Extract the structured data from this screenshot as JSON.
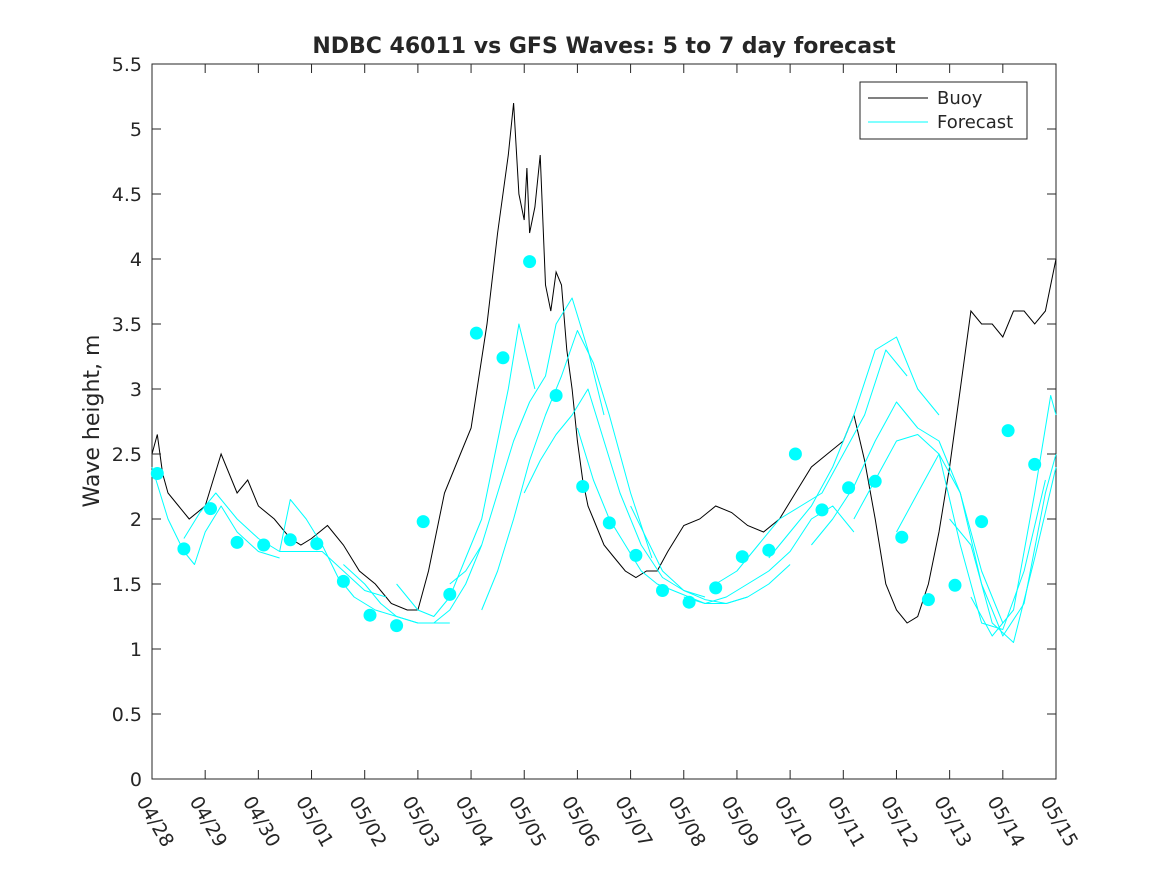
{
  "chart_data": {
    "type": "line",
    "title": "NDBC 46011 vs GFS Waves: 5 to 7 day forecast",
    "xlabel": "",
    "ylabel": "Wave height, m",
    "xlim": [
      0,
      17
    ],
    "ylim": [
      0,
      5.5
    ],
    "xticks": [
      0,
      1,
      2,
      3,
      4,
      5,
      6,
      7,
      8,
      9,
      10,
      11,
      12,
      13,
      14,
      15,
      16,
      17
    ],
    "xtick_labels": [
      "04/28",
      "04/29",
      "04/30",
      "05/01",
      "05/02",
      "05/03",
      "05/04",
      "05/05",
      "05/06",
      "05/07",
      "05/08",
      "05/09",
      "05/10",
      "05/11",
      "05/12",
      "05/13",
      "05/14",
      "05/15"
    ],
    "yticks": [
      0,
      0.5,
      1,
      1.5,
      2,
      2.5,
      3,
      3.5,
      4,
      4.5,
      5,
      5.5
    ],
    "ytick_labels": [
      "0",
      "0.5",
      "1",
      "1.5",
      "2",
      "2.5",
      "3",
      "3.5",
      "4",
      "4.5",
      "5",
      "5.5"
    ],
    "grid": false,
    "legend": {
      "placement": "top-right",
      "entries": [
        "Buoy",
        "Forecast"
      ]
    },
    "colors": {
      "buoy": "#000000",
      "forecast": "#00ffff"
    },
    "series": [
      {
        "name": "Buoy",
        "style": "line",
        "x": [
          0,
          0.1,
          0.2,
          0.3,
          0.5,
          0.7,
          1.0,
          1.3,
          1.6,
          1.8,
          2.0,
          2.3,
          2.6,
          2.8,
          3.0,
          3.3,
          3.6,
          3.9,
          4.2,
          4.5,
          4.8,
          5.0,
          5.2,
          5.5,
          5.8,
          6.0,
          6.3,
          6.5,
          6.7,
          6.8,
          6.9,
          7.0,
          7.05,
          7.1,
          7.2,
          7.3,
          7.4,
          7.5,
          7.6,
          7.7,
          7.8,
          7.9,
          8.0,
          8.1,
          8.2,
          8.3,
          8.4,
          8.5,
          8.7,
          8.9,
          9.1,
          9.3,
          9.5,
          9.7,
          10.0,
          10.3,
          10.6,
          10.9,
          11.2,
          11.5,
          11.8,
          12.1,
          12.4,
          12.7,
          13.0,
          13.2,
          13.4,
          13.6,
          13.8,
          14.0,
          14.2,
          14.4,
          14.6,
          14.8,
          15.0,
          15.2,
          15.4,
          15.6,
          15.8,
          16.0,
          16.2,
          16.4,
          16.6,
          16.8,
          16.9,
          17.0
        ],
        "y": [
          2.5,
          2.65,
          2.35,
          2.2,
          2.1,
          2.0,
          2.1,
          2.5,
          2.2,
          2.3,
          2.1,
          2.0,
          1.85,
          1.8,
          1.85,
          1.95,
          1.8,
          1.6,
          1.5,
          1.35,
          1.3,
          1.3,
          1.6,
          2.2,
          2.5,
          2.7,
          3.5,
          4.2,
          4.8,
          5.2,
          4.5,
          4.3,
          4.7,
          4.2,
          4.4,
          4.8,
          3.8,
          3.6,
          3.9,
          3.8,
          3.3,
          3.0,
          2.6,
          2.3,
          2.1,
          2.0,
          1.9,
          1.8,
          1.7,
          1.6,
          1.55,
          1.6,
          1.6,
          1.75,
          1.95,
          2.0,
          2.1,
          2.05,
          1.95,
          1.9,
          2.0,
          2.2,
          2.4,
          2.5,
          2.6,
          2.8,
          2.45,
          2.0,
          1.5,
          1.3,
          1.2,
          1.25,
          1.5,
          1.9,
          2.4,
          3.0,
          3.6,
          3.5,
          3.5,
          3.4,
          3.6,
          3.6,
          3.5,
          3.6,
          3.8,
          4.0
        ]
      },
      {
        "name": "Forecast",
        "style": "lines",
        "segments": [
          {
            "x": [
              0,
              0.3,
              0.6,
              0.8,
              1.0,
              1.3,
              1.6,
              2.0,
              2.4
            ],
            "y": [
              2.4,
              2.0,
              1.75,
              1.65,
              1.9,
              2.1,
              1.9,
              1.75,
              1.7
            ]
          },
          {
            "x": [
              0.6,
              0.9,
              1.2,
              1.6,
              2.0,
              2.4,
              2.8,
              3.2,
              3.6,
              4.0,
              4.4
            ],
            "y": [
              1.85,
              2.05,
              2.2,
              2.0,
              1.85,
              1.75,
              1.75,
              1.75,
              1.6,
              1.45,
              1.4
            ]
          },
          {
            "x": [
              2.4,
              2.6,
              2.9,
              3.2,
              3.5,
              3.8,
              4.2,
              4.6,
              5.0,
              5.4,
              5.6
            ],
            "y": [
              1.75,
              2.15,
              2.0,
              1.8,
              1.55,
              1.4,
              1.3,
              1.25,
              1.2,
              1.2,
              1.2
            ]
          },
          {
            "x": [
              3.6,
              4.0,
              4.3,
              4.6,
              5.0,
              5.3,
              5.6,
              5.9,
              6.2
            ],
            "y": [
              1.65,
              1.5,
              1.35,
              1.25,
              1.2,
              1.2,
              1.3,
              1.5,
              1.8
            ]
          },
          {
            "x": [
              4.6,
              5.0,
              5.3,
              5.6,
              5.9,
              6.2,
              6.5,
              6.7,
              6.9,
              7.2
            ],
            "y": [
              1.5,
              1.3,
              1.25,
              1.4,
              1.7,
              2.0,
              2.6,
              3.0,
              3.5,
              3.0
            ]
          },
          {
            "x": [
              5.6,
              5.9,
              6.2,
              6.5,
              6.8,
              7.1,
              7.4,
              7.6,
              7.9,
              8.2,
              8.5
            ],
            "y": [
              1.5,
              1.6,
              1.8,
              2.2,
              2.6,
              2.9,
              3.1,
              3.5,
              3.7,
              3.3,
              2.8
            ]
          },
          {
            "x": [
              6.2,
              6.5,
              6.8,
              7.1,
              7.4,
              7.7,
              8.0,
              8.3,
              8.6,
              9.0,
              9.4
            ],
            "y": [
              1.3,
              1.6,
              2.0,
              2.45,
              2.8,
              3.1,
              3.45,
              3.2,
              2.8,
              2.2,
              1.7
            ]
          },
          {
            "x": [
              7.0,
              7.3,
              7.6,
              7.9,
              8.2,
              8.5,
              8.8,
              9.2,
              9.6,
              10.0,
              10.4
            ],
            "y": [
              2.2,
              2.45,
              2.65,
              2.8,
              3.0,
              2.6,
              2.2,
              1.8,
              1.55,
              1.45,
              1.4
            ]
          },
          {
            "x": [
              8.0,
              8.3,
              8.6,
              8.9,
              9.2,
              9.5,
              9.8,
              10.1,
              10.4,
              10.8,
              11.2
            ],
            "y": [
              2.7,
              2.3,
              2.0,
              1.8,
              1.6,
              1.5,
              1.45,
              1.4,
              1.35,
              1.35,
              1.4
            ]
          },
          {
            "x": [
              9.0,
              9.3,
              9.6,
              10.0,
              10.4,
              10.8,
              11.2,
              11.6,
              12.0
            ],
            "y": [
              2.1,
              1.85,
              1.6,
              1.45,
              1.38,
              1.35,
              1.4,
              1.5,
              1.65
            ]
          },
          {
            "x": [
              10.0,
              10.4,
              10.8,
              11.2,
              11.6,
              12.0,
              12.4,
              12.8,
              13.2
            ],
            "y": [
              1.4,
              1.35,
              1.4,
              1.5,
              1.6,
              1.75,
              2.0,
              2.1,
              1.9
            ]
          },
          {
            "x": [
              10.6,
              11.0,
              11.4,
              11.8,
              12.2,
              12.6,
              13.0,
              13.4,
              13.8,
              14.2
            ],
            "y": [
              1.5,
              1.6,
              1.8,
              2.0,
              2.1,
              2.2,
              2.5,
              2.8,
              3.3,
              3.1
            ]
          },
          {
            "x": [
              11.6,
              12.0,
              12.4,
              12.8,
              13.2,
              13.6,
              14.0,
              14.4,
              14.8
            ],
            "y": [
              1.7,
              1.9,
              2.1,
              2.4,
              2.8,
              3.3,
              3.4,
              3.0,
              2.8
            ]
          },
          {
            "x": [
              12.4,
              12.8,
              13.2,
              13.6,
              14.0,
              14.4,
              14.8,
              15.2,
              15.6,
              16.0
            ],
            "y": [
              1.8,
              2.0,
              2.25,
              2.6,
              2.9,
              2.7,
              2.6,
              2.2,
              1.6,
              1.2
            ]
          },
          {
            "x": [
              13.2,
              13.6,
              14.0,
              14.4,
              14.8,
              15.2,
              15.6,
              16.0,
              16.4,
              16.8
            ],
            "y": [
              2.0,
              2.3,
              2.6,
              2.65,
              2.5,
              1.8,
              1.2,
              1.15,
              1.6,
              2.3
            ]
          },
          {
            "x": [
              14.0,
              14.4,
              14.8,
              15.2,
              15.6,
              16.0,
              16.4,
              16.8,
              17.0
            ],
            "y": [
              1.9,
              2.2,
              2.5,
              2.2,
              1.5,
              1.1,
              1.35,
              2.2,
              2.5
            ]
          },
          {
            "x": [
              15.0,
              15.4,
              15.8,
              16.2,
              16.6,
              17.0
            ],
            "y": [
              2.0,
              1.8,
              1.2,
              1.05,
              1.7,
              2.4
            ]
          },
          {
            "x": [
              15.4,
              15.8,
              16.2,
              16.6,
              16.9,
              17.0
            ],
            "y": [
              1.4,
              1.1,
              1.3,
              2.2,
              2.95,
              2.8
            ]
          }
        ]
      },
      {
        "name": "Forecast",
        "style": "markers",
        "x": [
          0.1,
          0.6,
          1.1,
          1.6,
          2.1,
          2.6,
          3.1,
          3.6,
          4.1,
          4.6,
          5.1,
          5.6,
          6.1,
          6.6,
          7.1,
          7.6,
          8.1,
          8.6,
          9.1,
          9.6,
          10.1,
          10.6,
          11.1,
          11.6,
          12.1,
          12.6,
          13.1,
          13.6,
          14.1,
          14.6,
          15.1,
          15.6,
          16.1,
          16.6
        ],
        "y": [
          2.35,
          1.77,
          2.08,
          1.82,
          1.8,
          1.84,
          1.81,
          1.52,
          1.26,
          1.18,
          1.98,
          1.42,
          3.43,
          3.24,
          3.98,
          2.95,
          2.25,
          1.97,
          1.72,
          1.45,
          1.36,
          1.47,
          1.71,
          1.76,
          2.5,
          2.07,
          2.24,
          2.29,
          1.86,
          1.38,
          1.49,
          1.98,
          2.68,
          2.42
        ]
      }
    ]
  }
}
